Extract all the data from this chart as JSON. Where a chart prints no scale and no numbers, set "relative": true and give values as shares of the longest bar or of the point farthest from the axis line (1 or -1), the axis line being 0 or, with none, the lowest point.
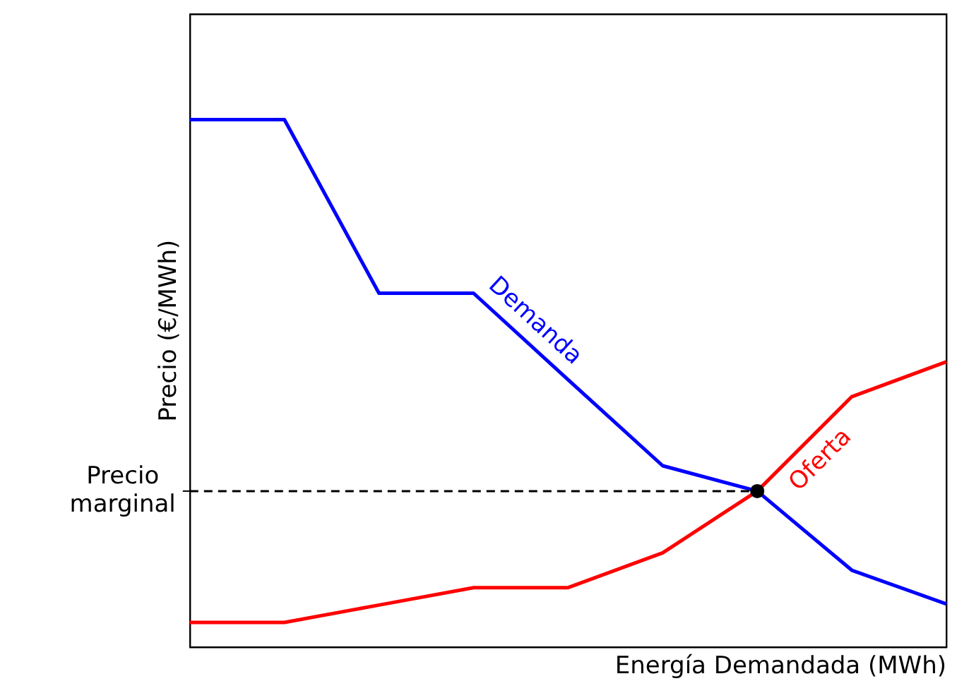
{
  "chart_data": {
    "type": "line",
    "relative": true,
    "xlabel": "Energía Demandada (MWh)",
    "ylabel": "Precio (€/MWh)",
    "categories": [
      null,
      null,
      null,
      null,
      null,
      null,
      null,
      null,
      null
    ],
    "series": [
      {
        "name": "Demanda",
        "color": "#0000ff",
        "values": [
          1,
          1,
          0.671,
          0.671,
          0.507,
          0.344,
          0.296,
          0.146,
          0.082
        ]
      },
      {
        "name": "Oferta",
        "color": "#ff0000",
        "values": [
          0.047,
          0.047,
          0.08,
          0.113,
          0.113,
          0.179,
          0.296,
          0.475,
          0.541
        ]
      }
    ],
    "ref_lines": [
      {
        "axis": "y",
        "value": 0.296,
        "label": "Precio marginal",
        "color": "#000000",
        "line_style": "dashed"
      }
    ],
    "grid": false,
    "legend": false,
    "marker": "none",
    "line_style": "solid"
  }
}
